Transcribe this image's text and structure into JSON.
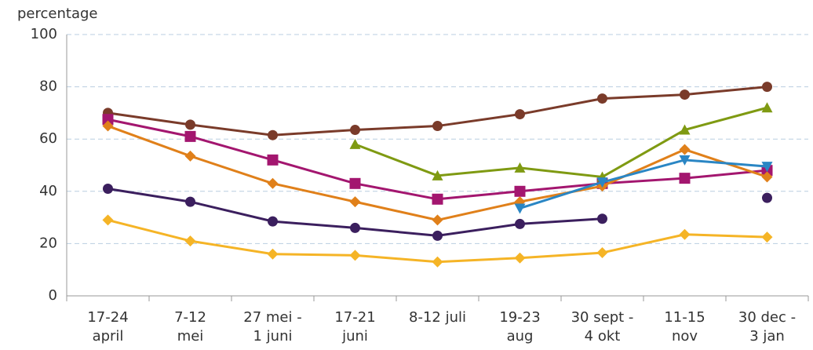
{
  "chart_data": {
    "type": "line",
    "y_label": "percentage",
    "categories": [
      [
        "17-24",
        "april"
      ],
      [
        "7-12",
        "mei"
      ],
      [
        "27 mei -",
        "1 juni"
      ],
      [
        "17-21",
        "juni"
      ],
      [
        "8-12 juli"
      ],
      [
        "19-23",
        "aug"
      ],
      [
        "30 sept -",
        "4 okt"
      ],
      [
        "11-15",
        "nov"
      ],
      [
        "30 dec -",
        "3 jan"
      ]
    ],
    "ylim": [
      0,
      100
    ],
    "yticks": [
      0,
      20,
      40,
      60,
      80,
      100
    ],
    "grid": true,
    "series": [
      {
        "color": "#7a3b2a",
        "marker": "circle",
        "values": [
          70,
          65.5,
          61.5,
          63.5,
          65,
          69.5,
          75.5,
          77,
          80
        ]
      },
      {
        "color": "#a3166f",
        "marker": "square",
        "values": [
          67.5,
          61,
          52,
          43,
          37,
          40,
          43,
          45,
          48
        ]
      },
      {
        "color": "#e0801a",
        "marker": "diamond",
        "values": [
          65,
          53.5,
          43,
          36,
          29,
          36,
          42,
          56,
          45.5
        ]
      },
      {
        "color": "#7f9a12",
        "marker": "triangle",
        "values": [
          null,
          null,
          null,
          58,
          46,
          49,
          45.5,
          63.5,
          72
        ]
      },
      {
        "color": "#2a86c4",
        "marker": "triangle-down",
        "values": [
          null,
          null,
          null,
          null,
          null,
          33.5,
          43.5,
          52,
          49.5
        ]
      },
      {
        "color": "#3b1f5e",
        "marker": "circle",
        "values": [
          41,
          36,
          28.5,
          26,
          23,
          27.5,
          29.5,
          null,
          37.5
        ]
      },
      {
        "color": "#f5b426",
        "marker": "diamond",
        "values": [
          29,
          21,
          16,
          15.5,
          13,
          14.5,
          16.5,
          23.5,
          22.5
        ]
      }
    ]
  }
}
